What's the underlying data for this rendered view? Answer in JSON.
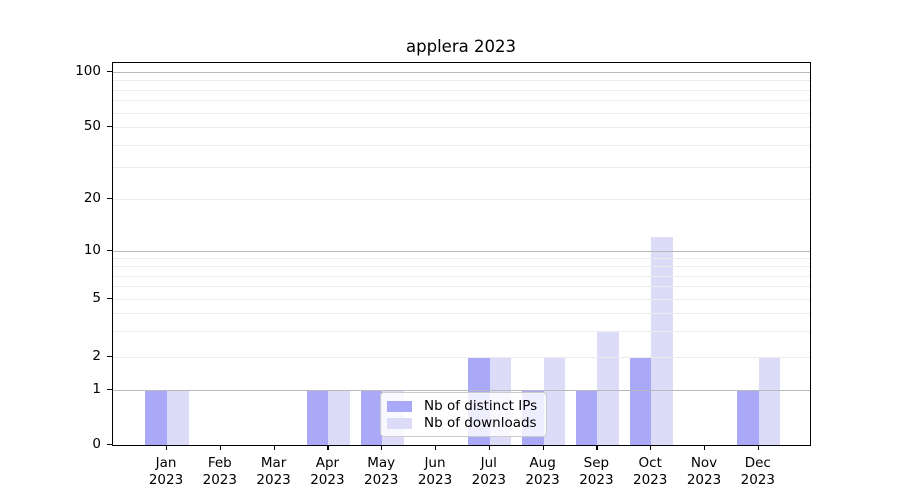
{
  "chart_data": {
    "type": "bar",
    "title": "applera 2023",
    "categories": [
      "Jan",
      "Feb",
      "Mar",
      "Apr",
      "May",
      "Jun",
      "Jul",
      "Aug",
      "Sep",
      "Oct",
      "Nov",
      "Dec"
    ],
    "category_year": "2023",
    "series": [
      {
        "key": "distinct-ips",
        "name": "Nb of distinct IPs",
        "color": "#a9a9f7",
        "values": [
          1,
          0,
          0,
          1,
          1,
          0,
          2,
          1,
          1,
          2,
          0,
          1
        ]
      },
      {
        "key": "downloads",
        "name": "Nb of downloads",
        "color": "#dcdcf8",
        "values": [
          1,
          0,
          0,
          1,
          1,
          0,
          2,
          2,
          3,
          12,
          0,
          2
        ]
      }
    ],
    "xlabel": "",
    "ylabel": "",
    "yscale": "symlog",
    "ylim": [
      0,
      110
    ],
    "y_ticks": [
      0,
      1,
      2,
      5,
      10,
      20,
      50,
      100
    ],
    "y_major_gridlines": [
      1,
      10,
      100
    ],
    "y_minor_gridlines": [
      2,
      3,
      4,
      5,
      6,
      7,
      8,
      9,
      20,
      30,
      40,
      50,
      60,
      70,
      80,
      90
    ],
    "grid": "on",
    "legend_position": "lower center",
    "colors": {
      "distinct_ips_bar": "#a9a9f7",
      "downloads_bar": "#dcdcf8",
      "major_grid": "#b9b9b9",
      "minor_grid": "#ececec",
      "spine": "#000000",
      "text": "#000000",
      "legend_border": "#cbcbcb"
    }
  }
}
